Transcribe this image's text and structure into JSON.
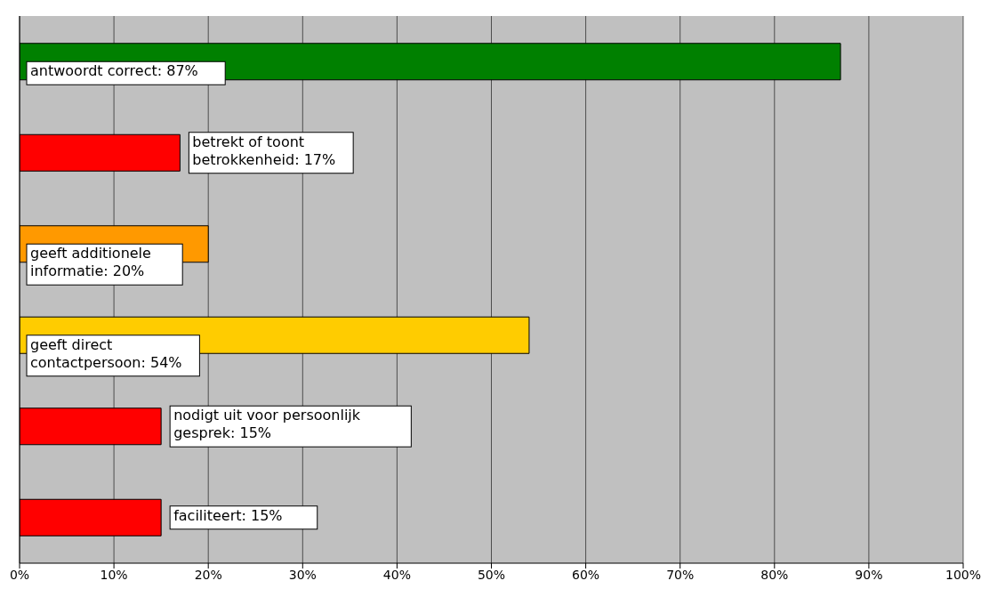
{
  "chart_data": {
    "type": "bar",
    "orientation": "horizontal",
    "categories": [
      null,
      null,
      null,
      null,
      null,
      null
    ],
    "values": [
      87,
      17,
      20,
      54,
      15,
      15
    ],
    "colors": [
      "#008000",
      "#ff0000",
      "#ff9900",
      "#ffcc00",
      "#ff0000",
      "#ff0000"
    ],
    "value_labels": [
      "antwoordt correct: 87%",
      "betrekt of toont\nbetrokkenheid: 17%",
      "geeft additionele\ninformatie: 20%",
      "geeft direct\ncontactpersoon: 54%",
      "nodigt uit voor persoonlijk\ngesprek: 15%",
      "faciliteert: 15%"
    ],
    "xlim": [
      0,
      100
    ],
    "xticks": [
      {
        "value": 0,
        "label": "0%"
      },
      {
        "value": 10,
        "label": "10%"
      },
      {
        "value": 20,
        "label": "20%"
      },
      {
        "value": 30,
        "label": "30%"
      },
      {
        "value": 40,
        "label": "40%"
      },
      {
        "value": 50,
        "label": "50%"
      },
      {
        "value": 60,
        "label": "60%"
      },
      {
        "value": 70,
        "label": "70%"
      },
      {
        "value": 80,
        "label": "80%"
      },
      {
        "value": 90,
        "label": "90%"
      },
      {
        "value": 100,
        "label": "100%"
      }
    ],
    "grid": "x",
    "legend": false,
    "tick_labels": "x"
  }
}
